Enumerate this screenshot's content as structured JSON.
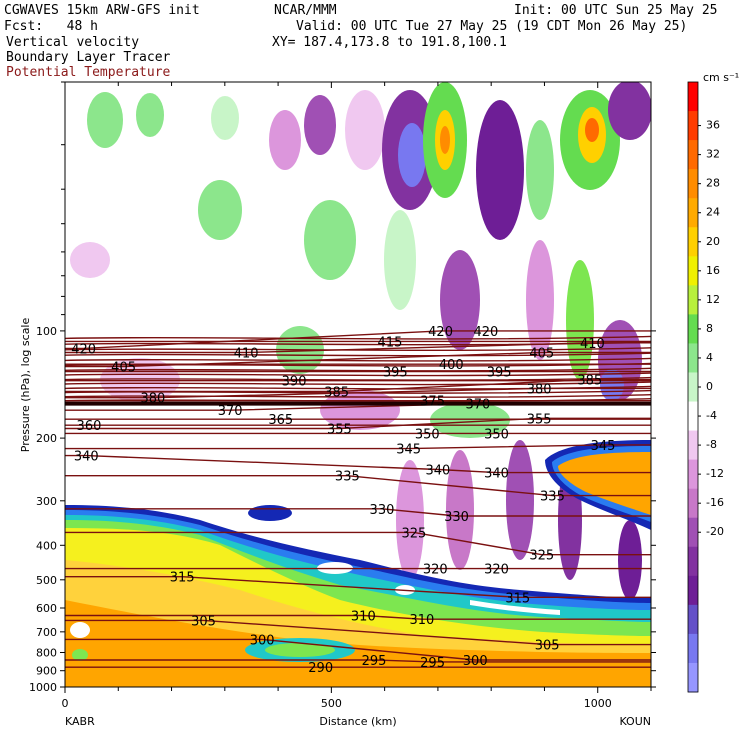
{
  "header": {
    "model": "CGWAVES 15km ARW-GFS init",
    "org": "NCAR/MMM",
    "init": "Init: 00 UTC Sun 25 May 25",
    "fcst": "Fcst:   48 h",
    "valid": "Valid: 00 UTC Tue 27 May 25 (19 CDT Mon 26 May 25)",
    "field1": "Vertical velocity",
    "field2": "Boundary Layer Tracer",
    "field3": "Potential Temperature",
    "xy": "XY= 187.4,173.8 to 191.8,100.1"
  },
  "colors": {
    "theta_contour": "#7a1010",
    "bl_tracer": [
      "#ffa500",
      "#ffd23c",
      "#f5f01e",
      "#7de650",
      "#20c8c8",
      "#2a7cf0",
      "#1428b4"
    ]
  },
  "chart_data": {
    "type": "cross-section",
    "ylabel": "Pressure (hPa), log scale",
    "xlabel": "Distance (km)",
    "left_endpoint": "KABR",
    "right_endpoint": "KOUN",
    "x_ticks": [
      0,
      500,
      1000
    ],
    "xlim": [
      0,
      1100
    ],
    "y_ticks": [
      100,
      200,
      300,
      400,
      500,
      600,
      700,
      800,
      900,
      1000
    ],
    "ylim": [
      1000,
      20
    ],
    "log_scale": true,
    "colorbar": {
      "units": "cm s⁻¹",
      "levels": [
        36,
        32,
        28,
        24,
        20,
        16,
        12,
        8,
        4,
        0,
        -4,
        -8,
        -12,
        -16,
        -20
      ],
      "colors": [
        "#ff0000",
        "#ff3c00",
        "#ff6a00",
        "#ff8c00",
        "#ffaa00",
        "#ffd000",
        "#f0f000",
        "#b8f03c",
        "#64dc50",
        "#8ce68c",
        "#c8f5c8",
        "#ffffff",
        "#f0c8f0",
        "#dc96dc",
        "#c878c8",
        "#a050b4",
        "#8232a0",
        "#6e1e96",
        "#6450c8",
        "#7878f0",
        "#9696ff"
      ]
    },
    "theta_contour_labels": [
      {
        "value": "420",
        "x": 35,
        "p": 112
      },
      {
        "value": "420",
        "x": 705,
        "p": 100
      },
      {
        "value": "420",
        "x": 790,
        "p": 100
      },
      {
        "value": "415",
        "x": 610,
        "p": 107
      },
      {
        "value": "410",
        "x": 340,
        "p": 115
      },
      {
        "value": "410",
        "x": 990,
        "p": 108
      },
      {
        "value": "405",
        "x": 110,
        "p": 126
      },
      {
        "value": "405",
        "x": 895,
        "p": 115
      },
      {
        "value": "400",
        "x": 725,
        "p": 124
      },
      {
        "value": "395",
        "x": 620,
        "p": 130
      },
      {
        "value": "395",
        "x": 815,
        "p": 130
      },
      {
        "value": "390",
        "x": 430,
        "p": 138
      },
      {
        "value": "385",
        "x": 510,
        "p": 148
      },
      {
        "value": "385",
        "x": 985,
        "p": 137
      },
      {
        "value": "380",
        "x": 165,
        "p": 154
      },
      {
        "value": "380",
        "x": 890,
        "p": 145
      },
      {
        "value": "375",
        "x": 690,
        "p": 157
      },
      {
        "value": "370",
        "x": 310,
        "p": 167
      },
      {
        "value": "370",
        "x": 775,
        "p": 160
      },
      {
        "value": "365",
        "x": 405,
        "p": 177
      },
      {
        "value": "360",
        "x": 45,
        "p": 184
      },
      {
        "value": "355",
        "x": 515,
        "p": 188
      },
      {
        "value": "355",
        "x": 890,
        "p": 176
      },
      {
        "value": "350",
        "x": 680,
        "p": 194
      },
      {
        "value": "350",
        "x": 810,
        "p": 194
      },
      {
        "value": "345",
        "x": 645,
        "p": 214
      },
      {
        "value": "345",
        "x": 1010,
        "p": 209
      },
      {
        "value": "340",
        "x": 40,
        "p": 224
      },
      {
        "value": "340",
        "x": 700,
        "p": 245
      },
      {
        "value": "340",
        "x": 810,
        "p": 250
      },
      {
        "value": "335",
        "x": 530,
        "p": 255
      },
      {
        "value": "335",
        "x": 915,
        "p": 290
      },
      {
        "value": "330",
        "x": 595,
        "p": 316
      },
      {
        "value": "330",
        "x": 735,
        "p": 331
      },
      {
        "value": "325",
        "x": 655,
        "p": 368
      },
      {
        "value": "325",
        "x": 895,
        "p": 425
      },
      {
        "value": "320",
        "x": 695,
        "p": 465
      },
      {
        "value": "320",
        "x": 810,
        "p": 465
      },
      {
        "value": "315",
        "x": 220,
        "p": 490
      },
      {
        "value": "315",
        "x": 850,
        "p": 560
      },
      {
        "value": "310",
        "x": 560,
        "p": 630
      },
      {
        "value": "310",
        "x": 670,
        "p": 645
      },
      {
        "value": "305",
        "x": 260,
        "p": 650
      },
      {
        "value": "305",
        "x": 905,
        "p": 760
      },
      {
        "value": "300",
        "x": 370,
        "p": 735
      },
      {
        "value": "300",
        "x": 770,
        "p": 840
      },
      {
        "value": "295",
        "x": 580,
        "p": 840
      },
      {
        "value": "295",
        "x": 690,
        "p": 850
      },
      {
        "value": "290",
        "x": 480,
        "p": 880
      }
    ]
  }
}
